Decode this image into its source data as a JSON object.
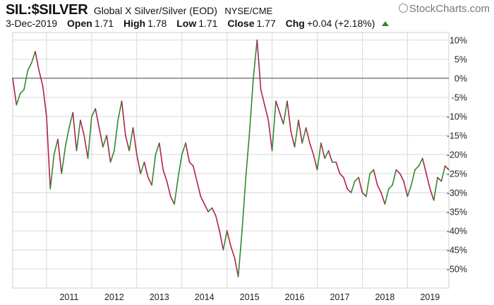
{
  "header": {
    "symbol": "SIL:$SILVER",
    "description": "Global X Silver/Silver (EOD)",
    "exchange": "NYSE/CME",
    "watermark": "StockCharts.com",
    "date": "3-Dec-2019",
    "open_label": "Open",
    "open_value": "1.71",
    "high_label": "High",
    "high_value": "1.78",
    "low_label": "Low",
    "low_value": "1.71",
    "close_label": "Close",
    "close_value": "1.77",
    "chg_label": "Chg",
    "chg_value": "+0.04 (+2.18%)"
  },
  "chart_data": {
    "type": "line",
    "title": "SIL:$SILVER",
    "xlabel": "",
    "ylabel": "",
    "x_tick_labels": [
      "2011",
      "2012",
      "2013",
      "2014",
      "2015",
      "2016",
      "2017",
      "2018",
      "2019"
    ],
    "y_tick_labels": [
      "10%",
      "5%",
      "0%",
      "-5%",
      "-10%",
      "-15%",
      "-20%",
      "-25%",
      "-30%",
      "-35%",
      "-40%",
      "-45%",
      "-50%"
    ],
    "ylim": [
      -55,
      12
    ],
    "xlim": [
      "2010-04",
      "2019-12"
    ],
    "grid": true,
    "zero_line": true,
    "colors": {
      "up": "#2e8b2e",
      "down": "#b0224a",
      "grid": "#d8d8d8",
      "zero_line": "#555555"
    },
    "series": [
      {
        "x": [
          "2010-04",
          "2010-05",
          "2010-06",
          "2010-07",
          "2010-08",
          "2010-09",
          "2010-10",
          "2010-11",
          "2010-12",
          "2011-01",
          "2011-02",
          "2011-03",
          "2011-04",
          "2011-05",
          "2011-06",
          "2011-07",
          "2011-08",
          "2011-09",
          "2011-10",
          "2011-11",
          "2011-12",
          "2012-01",
          "2012-02",
          "2012-03",
          "2012-04",
          "2012-05",
          "2012-06",
          "2012-07",
          "2012-08",
          "2012-09",
          "2012-10",
          "2012-11",
          "2012-12",
          "2013-01",
          "2013-02",
          "2013-03",
          "2013-04",
          "2013-05",
          "2013-06",
          "2013-07",
          "2013-08",
          "2013-09",
          "2013-10",
          "2013-11",
          "2013-12",
          "2014-01",
          "2014-02",
          "2014-03",
          "2014-04",
          "2014-05",
          "2014-06",
          "2014-07",
          "2014-08",
          "2014-09",
          "2014-10",
          "2014-11",
          "2014-12",
          "2015-01",
          "2015-02",
          "2015-03",
          "2015-04",
          "2015-05",
          "2015-06",
          "2015-07",
          "2015-08",
          "2015-09",
          "2015-10",
          "2015-11",
          "2015-12",
          "2016-01",
          "2016-02",
          "2016-03",
          "2016-04",
          "2016-05",
          "2016-06",
          "2016-07",
          "2016-08",
          "2016-09",
          "2016-10",
          "2016-11",
          "2016-12",
          "2017-01",
          "2017-02",
          "2017-03",
          "2017-04",
          "2017-05",
          "2017-06",
          "2017-07",
          "2017-08",
          "2017-09",
          "2017-10",
          "2017-11",
          "2017-12",
          "2018-01",
          "2018-02",
          "2018-03",
          "2018-04",
          "2018-05",
          "2018-06",
          "2018-07",
          "2018-08",
          "2018-09",
          "2018-10",
          "2018-11",
          "2018-12",
          "2019-01",
          "2019-02",
          "2019-03",
          "2019-04",
          "2019-05",
          "2019-06",
          "2019-07",
          "2019-08",
          "2019-09",
          "2019-10",
          "2019-11",
          "2019-12"
        ],
        "values": [
          0,
          -7,
          -4,
          -3,
          2,
          4,
          7,
          2,
          -2,
          -10,
          -29,
          -20,
          -16,
          -25,
          -18,
          -13,
          -9,
          -19,
          -11,
          -15,
          -21,
          -10,
          -8,
          -13,
          -18,
          -15,
          -22,
          -19,
          -11,
          -6,
          -15,
          -19,
          -13,
          -20,
          -25,
          -22,
          -26,
          -28,
          -20,
          -17,
          -24,
          -27,
          -31,
          -33,
          -26,
          -20,
          -17,
          -22,
          -23,
          -27,
          -31,
          -33,
          -35,
          -34,
          -36,
          -40,
          -45,
          -40,
          -44,
          -47,
          -52,
          -40,
          -26,
          -14,
          0,
          10,
          -3,
          -7,
          -11,
          -19,
          -6,
          -9,
          -12,
          -6,
          -14,
          -18,
          -11,
          -17,
          -13,
          -17,
          -20,
          -24,
          -17,
          -21,
          -19,
          -22,
          -22,
          -25,
          -26,
          -29,
          -30,
          -27,
          -26,
          -30,
          -31,
          -25,
          -24,
          -28,
          -30,
          -33,
          -29,
          -28,
          -24,
          -25,
          -27,
          -31,
          -28,
          -24,
          -23,
          -21,
          -25,
          -29,
          -32,
          -26,
          -27,
          -23,
          -24
        ]
      }
    ]
  }
}
